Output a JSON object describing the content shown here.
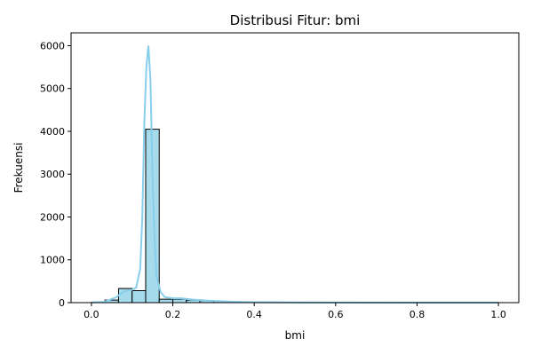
{
  "chart_data": {
    "type": "bar",
    "title": "Distribusi Fitur: bmi",
    "xlabel": "bmi",
    "ylabel": "Frekuensi",
    "xlim": [
      -0.05,
      1.05
    ],
    "ylim": [
      0,
      6300
    ],
    "xticks": [
      0.0,
      0.2,
      0.4,
      0.6,
      0.8,
      1.0
    ],
    "xtick_labels": [
      "0.0",
      "0.2",
      "0.4",
      "0.6",
      "0.8",
      "1.0"
    ],
    "yticks": [
      0,
      1000,
      2000,
      3000,
      4000,
      5000,
      6000
    ],
    "ytick_labels": [
      "0",
      "1000",
      "2000",
      "3000",
      "4000",
      "5000",
      "6000"
    ],
    "grid": false,
    "bin_width": 0.0333,
    "bins": [
      {
        "x0": 0.0,
        "count": 5
      },
      {
        "x0": 0.0333,
        "count": 60
      },
      {
        "x0": 0.0667,
        "count": 330
      },
      {
        "x0": 0.1,
        "count": 280
      },
      {
        "x0": 0.1333,
        "count": 4050
      },
      {
        "x0": 0.1667,
        "count": 80
      },
      {
        "x0": 0.2,
        "count": 80
      },
      {
        "x0": 0.2333,
        "count": 60
      },
      {
        "x0": 0.2667,
        "count": 45
      },
      {
        "x0": 0.3,
        "count": 30
      },
      {
        "x0": 0.3333,
        "count": 20
      },
      {
        "x0": 0.3667,
        "count": 12
      },
      {
        "x0": 0.4,
        "count": 8
      },
      {
        "x0": 0.4333,
        "count": 5
      },
      {
        "x0": 0.4667,
        "count": 4
      },
      {
        "x0": 0.5,
        "count": 3
      },
      {
        "x0": 0.5333,
        "count": 2
      },
      {
        "x0": 0.5667,
        "count": 2
      },
      {
        "x0": 0.6,
        "count": 1
      },
      {
        "x0": 0.6333,
        "count": 1
      },
      {
        "x0": 0.6667,
        "count": 1
      },
      {
        "x0": 0.7,
        "count": 1
      },
      {
        "x0": 0.7333,
        "count": 1
      },
      {
        "x0": 0.7667,
        "count": 0
      },
      {
        "x0": 0.8,
        "count": 1
      },
      {
        "x0": 0.8333,
        "count": 0
      },
      {
        "x0": 0.8667,
        "count": 0
      },
      {
        "x0": 0.9,
        "count": 1
      },
      {
        "x0": 0.9333,
        "count": 0
      },
      {
        "x0": 0.9667,
        "count": 1
      }
    ],
    "kde": [
      [
        0.0,
        5
      ],
      [
        0.03,
        15
      ],
      [
        0.06,
        120
      ],
      [
        0.08,
        260
      ],
      [
        0.1,
        300
      ],
      [
        0.11,
        350
      ],
      [
        0.12,
        800
      ],
      [
        0.125,
        2000
      ],
      [
        0.13,
        4200
      ],
      [
        0.135,
        5500
      ],
      [
        0.14,
        6000
      ],
      [
        0.145,
        5200
      ],
      [
        0.15,
        3000
      ],
      [
        0.155,
        1500
      ],
      [
        0.16,
        600
      ],
      [
        0.17,
        250
      ],
      [
        0.18,
        130
      ],
      [
        0.2,
        100
      ],
      [
        0.22,
        100
      ],
      [
        0.25,
        70
      ],
      [
        0.3,
        40
      ],
      [
        0.35,
        20
      ],
      [
        0.4,
        10
      ],
      [
        0.5,
        4
      ],
      [
        0.6,
        2
      ],
      [
        0.8,
        1
      ],
      [
        1.0,
        1
      ]
    ],
    "colors": {
      "bar_fill": "#a6dbec",
      "bar_edge": "#000000",
      "kde_line": "#87ceeb"
    }
  }
}
